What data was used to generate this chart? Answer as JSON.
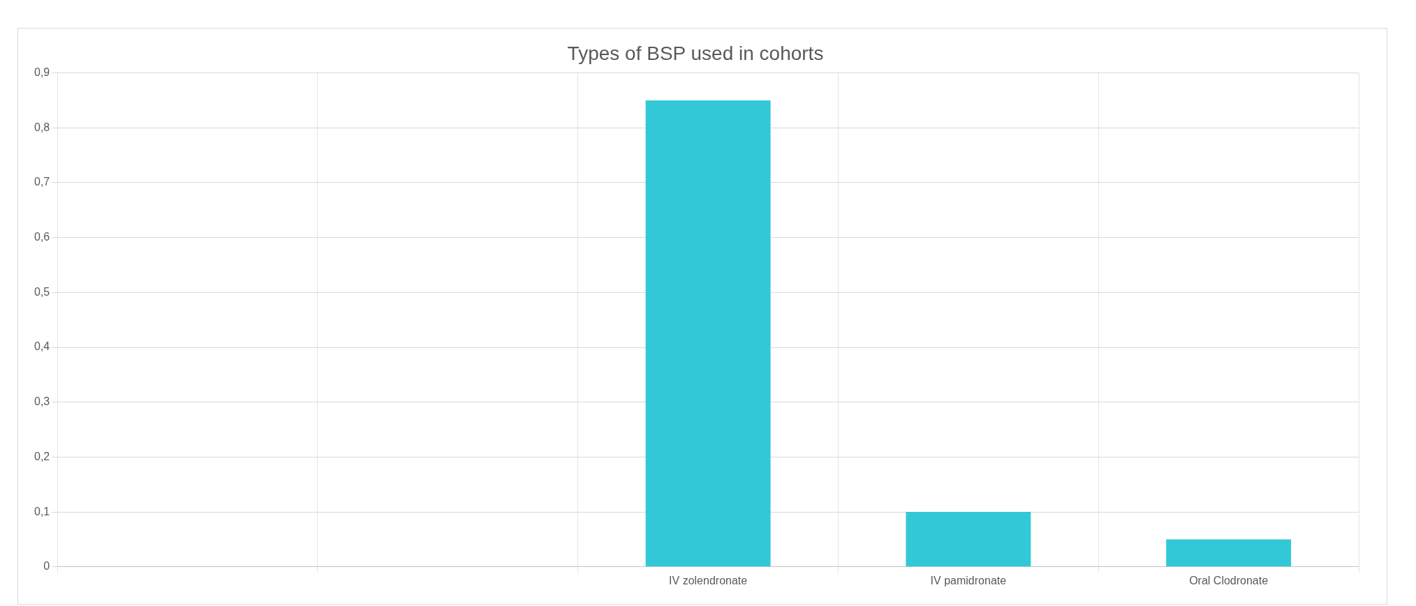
{
  "chart_data": {
    "type": "bar",
    "title": "Types of BSP used in cohorts",
    "categories": [
      null,
      null,
      "IV zolendronate",
      "IV pamidronate",
      "Oral Clodronate"
    ],
    "values": [
      0,
      0,
      0.85,
      0.1,
      0.05
    ],
    "color": "#33c8d8",
    "ylim": [
      0,
      0.9
    ],
    "yticks": [
      {
        "value": 0,
        "label": "0"
      },
      {
        "value": 0.1,
        "label": "0,1"
      },
      {
        "value": 0.2,
        "label": "0,2"
      },
      {
        "value": 0.3,
        "label": "0,3"
      },
      {
        "value": 0.4,
        "label": "0,4"
      },
      {
        "value": 0.5,
        "label": "0,5"
      },
      {
        "value": 0.6,
        "label": "0,6"
      },
      {
        "value": 0.7,
        "label": "0,7"
      },
      {
        "value": 0.8,
        "label": "0,8"
      },
      {
        "value": 0.9,
        "label": "0,9"
      }
    ],
    "grid": true
  }
}
